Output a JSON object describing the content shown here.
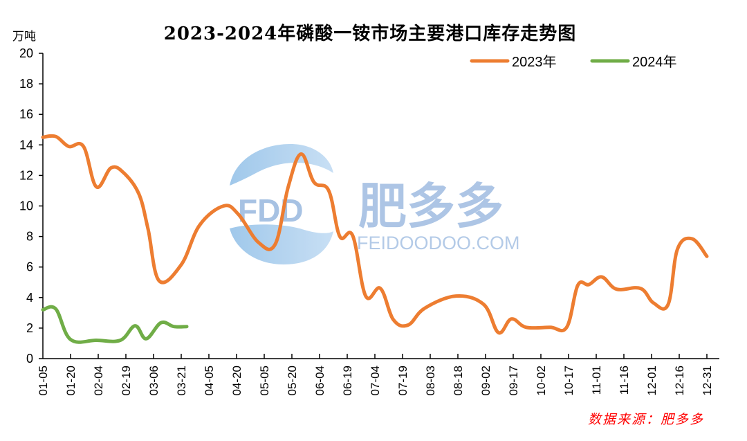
{
  "title": "2023-2024年磷酸一铵市场主要港口库存走势图",
  "y_unit": "万吨",
  "source": "数据来源：肥多多",
  "watermark": {
    "logo_text": "FDD",
    "brand_cn": "肥多多",
    "brand_url": "FEIDOODOO.COM"
  },
  "legend": [
    {
      "label": "2023年",
      "color": "#ED7D31"
    },
    {
      "label": "2024年",
      "color": "#70AD47"
    }
  ],
  "chart_data": {
    "type": "line",
    "title": "2023-2024年磷酸一铵市场主要港口库存走势图",
    "xlabel": "",
    "ylabel": "万吨",
    "ylim": [
      0,
      20
    ],
    "yticks": [
      0,
      2,
      4,
      6,
      8,
      10,
      12,
      14,
      16,
      18,
      20
    ],
    "xticks": [
      "01-05",
      "01-20",
      "02-04",
      "02-19",
      "03-06",
      "03-21",
      "04-05",
      "04-20",
      "05-05",
      "05-20",
      "06-04",
      "06-19",
      "07-04",
      "07-19",
      "08-03",
      "08-18",
      "09-02",
      "09-17",
      "10-02",
      "10-17",
      "11-01",
      "11-16",
      "12-01",
      "12-16",
      "12-31"
    ],
    "grid": false,
    "legend_position": "top-right",
    "series": [
      {
        "name": "2023年",
        "color": "#ED7D31",
        "points": [
          {
            "x": "01-05",
            "y": 14.5
          },
          {
            "x": "01-12",
            "y": 14.55
          },
          {
            "x": "01-19",
            "y": 13.9
          },
          {
            "x": "01-27",
            "y": 13.9
          },
          {
            "x": "02-03",
            "y": 11.25
          },
          {
            "x": "02-11",
            "y": 12.5
          },
          {
            "x": "02-18",
            "y": 12.15
          },
          {
            "x": "02-26",
            "y": 10.8
          },
          {
            "x": "03-03",
            "y": 8.5
          },
          {
            "x": "03-09",
            "y": 5.1
          },
          {
            "x": "03-21",
            "y": 6.15
          },
          {
            "x": "03-31",
            "y": 8.75
          },
          {
            "x": "04-13",
            "y": 10.0
          },
          {
            "x": "04-21",
            "y": 9.45
          },
          {
            "x": "05-02",
            "y": 7.6
          },
          {
            "x": "05-11",
            "y": 7.5
          },
          {
            "x": "05-18",
            "y": 11.25
          },
          {
            "x": "05-25",
            "y": 13.4
          },
          {
            "x": "06-01",
            "y": 11.55
          },
          {
            "x": "06-09",
            "y": 11.0
          },
          {
            "x": "06-15",
            "y": 8.0
          },
          {
            "x": "06-22",
            "y": 8.05
          },
          {
            "x": "06-29",
            "y": 4.1
          },
          {
            "x": "07-07",
            "y": 4.6
          },
          {
            "x": "07-14",
            "y": 2.55
          },
          {
            "x": "07-22",
            "y": 2.2
          },
          {
            "x": "07-31",
            "y": 3.3
          },
          {
            "x": "08-17",
            "y": 4.1
          },
          {
            "x": "09-01",
            "y": 3.55
          },
          {
            "x": "09-09",
            "y": 1.7
          },
          {
            "x": "09-16",
            "y": 2.6
          },
          {
            "x": "09-24",
            "y": 2.05
          },
          {
            "x": "10-07",
            "y": 2.05
          },
          {
            "x": "10-16",
            "y": 2.05
          },
          {
            "x": "10-22",
            "y": 4.8
          },
          {
            "x": "10-28",
            "y": 4.85
          },
          {
            "x": "11-04",
            "y": 5.35
          },
          {
            "x": "11-12",
            "y": 4.55
          },
          {
            "x": "11-25",
            "y": 4.6
          },
          {
            "x": "12-02",
            "y": 3.65
          },
          {
            "x": "12-10",
            "y": 3.55
          },
          {
            "x": "12-15",
            "y": 7.15
          },
          {
            "x": "12-23",
            "y": 7.85
          },
          {
            "x": "12-31",
            "y": 6.7
          }
        ]
      },
      {
        "name": "2024年",
        "color": "#70AD47",
        "points": [
          {
            "x": "01-05",
            "y": 3.2
          },
          {
            "x": "01-12",
            "y": 3.25
          },
          {
            "x": "01-20",
            "y": 1.25
          },
          {
            "x": "02-03",
            "y": 1.2
          },
          {
            "x": "02-16",
            "y": 1.2
          },
          {
            "x": "02-24",
            "y": 2.15
          },
          {
            "x": "03-02",
            "y": 1.3
          },
          {
            "x": "03-10",
            "y": 2.35
          },
          {
            "x": "03-17",
            "y": 2.1
          },
          {
            "x": "03-24",
            "y": 2.1
          }
        ]
      }
    ]
  }
}
